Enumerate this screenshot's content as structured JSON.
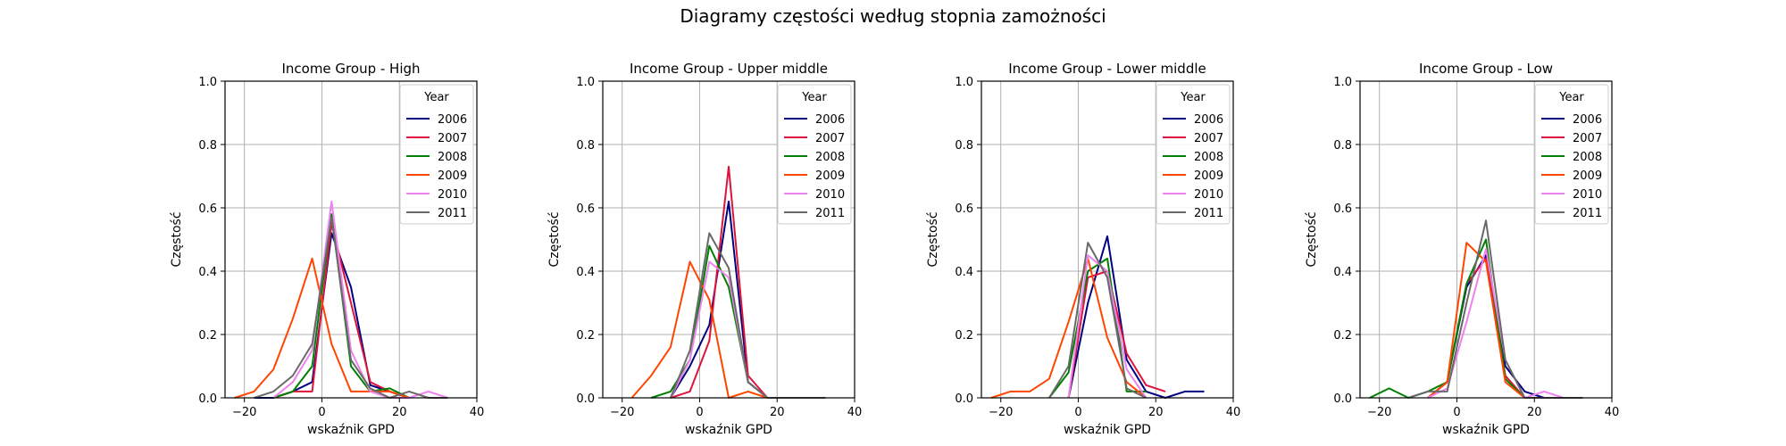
{
  "suptitle": "Diagramy częstości według stopnia zamożności",
  "colors": {
    "2006": "#000080",
    "2007": "#dc143c",
    "2008": "#008000",
    "2009": "#ff4500",
    "2010": "#ee82ee",
    "2011": "#696969"
  },
  "chart_data": [
    {
      "type": "line",
      "title": "Income Group - High",
      "xlabel": "wskaźnik GPD",
      "ylabel": "Częstość",
      "xlim": [
        -25,
        40
      ],
      "ylim": [
        0,
        1.0
      ],
      "xticks": [
        -20,
        0,
        20,
        40
      ],
      "yticks": [
        0.0,
        0.2,
        0.4,
        0.6,
        0.8,
        1.0
      ],
      "grid": true,
      "legend": {
        "title": "Year",
        "placement": "top-right"
      },
      "series": [
        {
          "name": "2006",
          "x": [
            -17.5,
            -12.5,
            -7.5,
            -2.5,
            2.5,
            7.5,
            12.5,
            17.5,
            22.5
          ],
          "y": [
            0.0,
            0.0,
            0.02,
            0.05,
            0.52,
            0.35,
            0.04,
            0.02,
            0.0
          ]
        },
        {
          "name": "2007",
          "x": [
            -12.5,
            -7.5,
            -2.5,
            2.5,
            7.5,
            12.5,
            17.5,
            22.5
          ],
          "y": [
            0.0,
            0.02,
            0.02,
            0.55,
            0.3,
            0.05,
            0.02,
            0.0
          ]
        },
        {
          "name": "2008",
          "x": [
            -12.5,
            -7.5,
            -2.5,
            2.5,
            7.5,
            12.5,
            17.5,
            22.5
          ],
          "y": [
            0.0,
            0.02,
            0.1,
            0.58,
            0.1,
            0.02,
            0.03,
            0.0
          ]
        },
        {
          "name": "2009",
          "x": [
            -22.5,
            -17.5,
            -12.5,
            -7.5,
            -2.5,
            2.5,
            7.5,
            12.5,
            17.5,
            22.5
          ],
          "y": [
            0.0,
            0.02,
            0.09,
            0.25,
            0.44,
            0.17,
            0.02,
            0.02,
            0.02,
            0.0
          ]
        },
        {
          "name": "2010",
          "x": [
            -12.5,
            -7.5,
            -2.5,
            2.5,
            7.5,
            12.5,
            17.5,
            22.5,
            27.5,
            32.5
          ],
          "y": [
            0.0,
            0.05,
            0.15,
            0.62,
            0.15,
            0.02,
            0.0,
            0.0,
            0.02,
            0.0
          ]
        },
        {
          "name": "2011",
          "x": [
            -17.5,
            -12.5,
            -7.5,
            -2.5,
            2.5,
            7.5,
            12.5,
            17.5,
            22.5,
            27.5,
            32.5
          ],
          "y": [
            0.0,
            0.02,
            0.07,
            0.17,
            0.57,
            0.12,
            0.03,
            0.0,
            0.02,
            0.0,
            0.0
          ]
        }
      ]
    },
    {
      "type": "line",
      "title": "Income Group - Upper middle",
      "xlabel": "wskaźnik GPD",
      "ylabel": "Częstość",
      "xlim": [
        -25,
        40
      ],
      "ylim": [
        0,
        1.0
      ],
      "xticks": [
        -20,
        0,
        20,
        40
      ],
      "yticks": [
        0.0,
        0.2,
        0.4,
        0.6,
        0.8,
        1.0
      ],
      "grid": true,
      "legend": {
        "title": "Year",
        "placement": "top-right"
      },
      "series": [
        {
          "name": "2006",
          "x": [
            -7.5,
            -2.5,
            2.5,
            7.5,
            12.5,
            17.5
          ],
          "y": [
            0.0,
            0.1,
            0.23,
            0.62,
            0.05,
            0.0
          ]
        },
        {
          "name": "2007",
          "x": [
            -7.5,
            -2.5,
            2.5,
            7.5,
            12.5,
            17.5
          ],
          "y": [
            0.0,
            0.02,
            0.18,
            0.73,
            0.07,
            0.0
          ]
        },
        {
          "name": "2008",
          "x": [
            -12.5,
            -7.5,
            -2.5,
            2.5,
            7.5,
            12.5,
            17.5
          ],
          "y": [
            0.0,
            0.02,
            0.12,
            0.48,
            0.35,
            0.05,
            0.0
          ]
        },
        {
          "name": "2009",
          "x": [
            -17.5,
            -12.5,
            -7.5,
            -2.5,
            2.5,
            7.5,
            12.5,
            17.5
          ],
          "y": [
            0.0,
            0.07,
            0.16,
            0.43,
            0.31,
            0.0,
            0.02,
            0.0
          ]
        },
        {
          "name": "2010",
          "x": [
            -7.5,
            -2.5,
            2.5,
            7.5,
            12.5,
            17.5
          ],
          "y": [
            0.0,
            0.12,
            0.43,
            0.38,
            0.05,
            0.0
          ]
        },
        {
          "name": "2011",
          "x": [
            -7.5,
            -2.5,
            2.5,
            7.5,
            12.5,
            17.5,
            22.5,
            27.5,
            32.5
          ],
          "y": [
            0.0,
            0.15,
            0.52,
            0.41,
            0.05,
            0.0,
            0.0,
            0.0,
            0.0
          ]
        }
      ]
    },
    {
      "type": "line",
      "title": "Income Group - Lower middle",
      "xlabel": "wskaźnik GPD",
      "ylabel": "Częstość",
      "xlim": [
        -25,
        40
      ],
      "ylim": [
        0,
        1.0
      ],
      "xticks": [
        -20,
        0,
        20,
        40
      ],
      "yticks": [
        0.0,
        0.2,
        0.4,
        0.6,
        0.8,
        1.0
      ],
      "grid": true,
      "legend": {
        "title": "Year",
        "placement": "top-right"
      },
      "series": [
        {
          "name": "2006",
          "x": [
            -2.5,
            2.5,
            7.5,
            12.5,
            17.5,
            22.5,
            27.5,
            32.5
          ],
          "y": [
            0.0,
            0.3,
            0.51,
            0.12,
            0.02,
            0.0,
            0.02,
            0.02
          ]
        },
        {
          "name": "2007",
          "x": [
            -2.5,
            2.5,
            7.5,
            12.5,
            17.5,
            22.5
          ],
          "y": [
            0.0,
            0.38,
            0.4,
            0.14,
            0.04,
            0.02
          ]
        },
        {
          "name": "2008",
          "x": [
            -7.5,
            -2.5,
            2.5,
            7.5,
            12.5,
            17.5
          ],
          "y": [
            0.0,
            0.08,
            0.4,
            0.44,
            0.02,
            0.02
          ]
        },
        {
          "name": "2009",
          "x": [
            -22.5,
            -17.5,
            -12.5,
            -7.5,
            -2.5,
            2.5,
            7.5,
            12.5,
            17.5
          ],
          "y": [
            0.0,
            0.02,
            0.02,
            0.06,
            0.24,
            0.44,
            0.19,
            0.05,
            0.0
          ]
        },
        {
          "name": "2010",
          "x": [
            -2.5,
            2.5,
            7.5,
            12.5,
            17.5
          ],
          "y": [
            0.0,
            0.45,
            0.4,
            0.09,
            0.0
          ]
        },
        {
          "name": "2011",
          "x": [
            -7.5,
            -2.5,
            2.5,
            7.5,
            12.5,
            17.5
          ],
          "y": [
            0.0,
            0.1,
            0.49,
            0.38,
            0.03,
            0.0
          ]
        }
      ]
    },
    {
      "type": "line",
      "title": "Income Group - Low",
      "xlabel": "wskaźnik GPD",
      "ylabel": "Częstość",
      "xlim": [
        -25,
        40
      ],
      "ylim": [
        0,
        1.0
      ],
      "xticks": [
        -20,
        0,
        20,
        40
      ],
      "yticks": [
        0.0,
        0.2,
        0.4,
        0.6,
        0.8,
        1.0
      ],
      "grid": true,
      "legend": {
        "title": "Year",
        "placement": "top-right"
      },
      "series": [
        {
          "name": "2006",
          "x": [
            -7.5,
            -2.5,
            2.5,
            7.5,
            12.5,
            17.5,
            22.5
          ],
          "y": [
            0.0,
            0.05,
            0.35,
            0.45,
            0.1,
            0.02,
            0.0
          ]
        },
        {
          "name": "2007",
          "x": [
            -7.5,
            -2.5,
            2.5,
            7.5,
            12.5,
            17.5
          ],
          "y": [
            0.0,
            0.05,
            0.36,
            0.44,
            0.07,
            0.0
          ]
        },
        {
          "name": "2008",
          "x": [
            -22.5,
            -17.5,
            -12.5,
            -7.5,
            -2.5,
            2.5,
            7.5,
            12.5,
            17.5
          ],
          "y": [
            0.0,
            0.03,
            0.0,
            0.02,
            0.05,
            0.36,
            0.5,
            0.06,
            0.0
          ]
        },
        {
          "name": "2009",
          "x": [
            -7.5,
            -2.5,
            2.5,
            7.5,
            12.5,
            17.5
          ],
          "y": [
            0.0,
            0.05,
            0.49,
            0.43,
            0.05,
            0.0
          ]
        },
        {
          "name": "2010",
          "x": [
            -7.5,
            -2.5,
            2.5,
            7.5,
            12.5,
            17.5,
            22.5,
            27.5
          ],
          "y": [
            0.0,
            0.03,
            0.24,
            0.47,
            0.12,
            0.0,
            0.02,
            0.0
          ]
        },
        {
          "name": "2011",
          "x": [
            -12.5,
            -7.5,
            -2.5,
            2.5,
            7.5,
            12.5,
            17.5,
            22.5,
            27.5,
            32.5
          ],
          "y": [
            0.0,
            0.02,
            0.02,
            0.3,
            0.56,
            0.12,
            0.0,
            0.0,
            0.0,
            0.0
          ]
        }
      ]
    }
  ]
}
